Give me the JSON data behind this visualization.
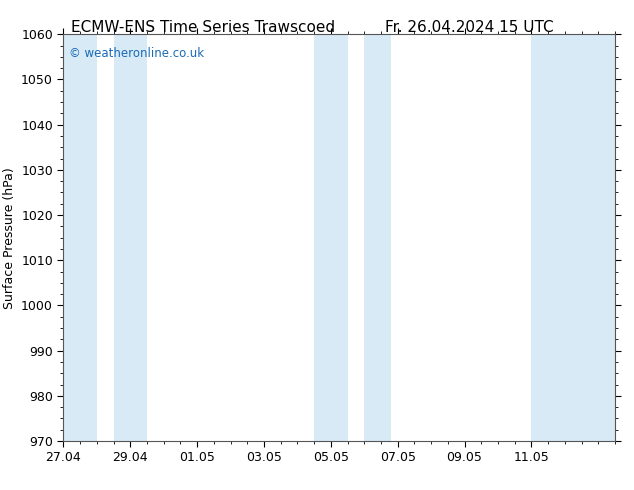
{
  "title_left": "ECMW-ENS Time Series Trawscoed",
  "title_right": "Fr. 26.04.2024 15 UTC",
  "ylabel": "Surface Pressure (hPa)",
  "ylim": [
    970,
    1060
  ],
  "yticks": [
    970,
    980,
    990,
    1000,
    1010,
    1020,
    1030,
    1040,
    1050,
    1060
  ],
  "x_tick_labels": [
    "27.04",
    "29.04",
    "01.05",
    "03.05",
    "05.05",
    "07.05",
    "09.05",
    "11.05"
  ],
  "x_min": 0,
  "x_max": 16.5,
  "shaded_bands": [
    {
      "x_start": 0.0,
      "x_end": 1.0
    },
    {
      "x_start": 1.5,
      "x_end": 2.5
    },
    {
      "x_start": 7.5,
      "x_end": 8.5
    },
    {
      "x_start": 9.0,
      "x_end": 9.8
    },
    {
      "x_start": 14.5,
      "x_end": 16.5
    }
  ],
  "band_color": "#d8eaf6",
  "watermark_text": "© weatheronline.co.uk",
  "watermark_color": "#1a6bb5",
  "bg_color": "#ffffff",
  "title_fontsize": 11,
  "label_fontsize": 9,
  "tick_fontsize": 9,
  "spine_color": "#555555"
}
